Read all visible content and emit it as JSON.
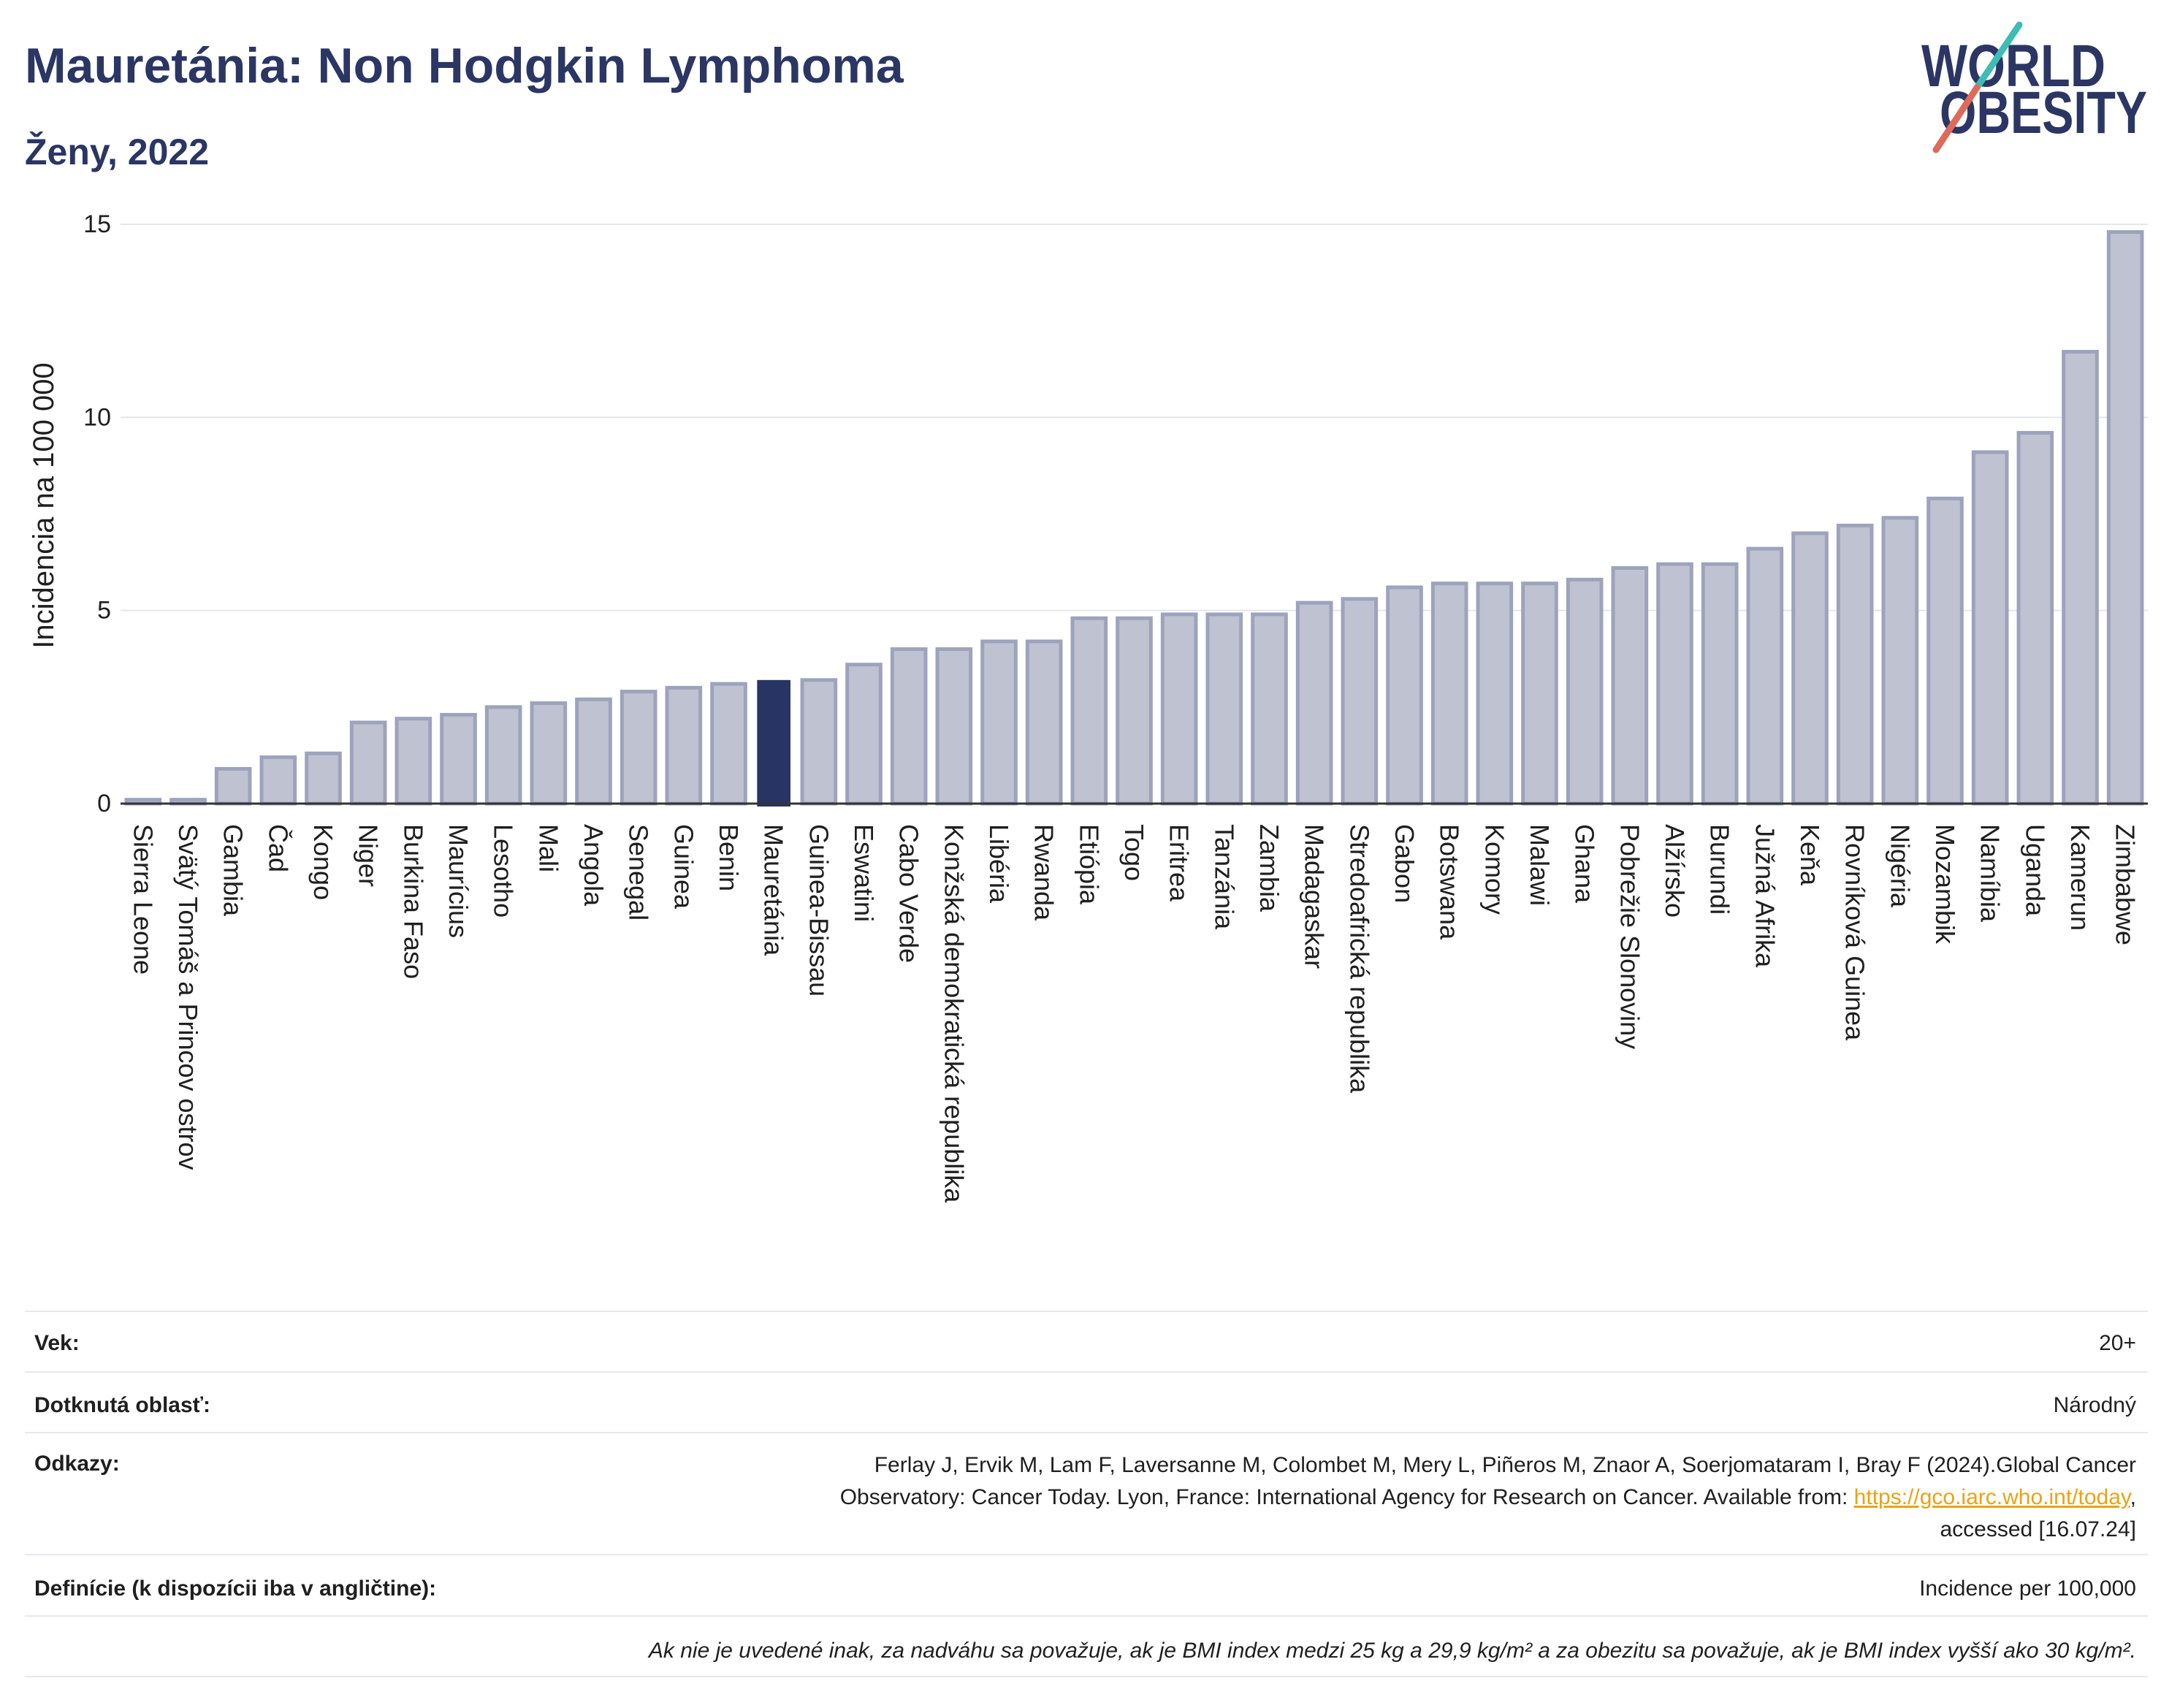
{
  "logo": {
    "line1": "WORLD",
    "line2": "OBESITY"
  },
  "chart_data": {
    "type": "bar",
    "title": "Mauretánia: Non Hodgkin Lymphoma",
    "subtitle": "Ženy, 2022",
    "xlabel": "",
    "ylabel": "Incidencia na 100 000",
    "ylim": [
      0,
      15
    ],
    "yticks": [
      0,
      5,
      10,
      15
    ],
    "grid": true,
    "legend": "none",
    "highlight": "Mauretánia",
    "colors": {
      "bar": "#bec2d1",
      "bar_border": "#9da3bc",
      "highlight": "#283463",
      "axis": "#333333",
      "grid": "#e4e6ec"
    },
    "categories": [
      "Sierra Leone",
      "Svätý Tomáš a Princov ostrov",
      "Gambia",
      "Čad",
      "Kongo",
      "Niger",
      "Burkina Faso",
      "Maurícius",
      "Lesotho",
      "Mali",
      "Angola",
      "Senegal",
      "Guinea",
      "Benin",
      "Mauretánia",
      "Guinea-Bissau",
      "Eswatini",
      "Cabo Verde",
      "Konžská demokratická republika",
      "Libéria",
      "Rwanda",
      "Etiópia",
      "Togo",
      "Eritrea",
      "Tanzánia",
      "Zambia",
      "Madagaskar",
      "Stredoafrická republika",
      "Gabon",
      "Botswana",
      "Komory",
      "Malawi",
      "Ghana",
      "Pobrežie Slonoviny",
      "Alžírsko",
      "Burundi",
      "Južná Afrika",
      "Keňa",
      "Rovníková Guinea",
      "Nigéria",
      "Mozambik",
      "Namíbia",
      "Uganda",
      "Kamerun",
      "Zimbabwe"
    ],
    "values": [
      0.1,
      0.1,
      0.9,
      1.2,
      1.3,
      2.1,
      2.2,
      2.3,
      2.5,
      2.6,
      2.7,
      2.9,
      3.0,
      3.1,
      3.2,
      3.2,
      3.6,
      4.0,
      4.0,
      4.2,
      4.2,
      4.8,
      4.8,
      4.9,
      4.9,
      4.9,
      5.2,
      5.3,
      5.6,
      5.7,
      5.7,
      5.7,
      5.8,
      6.1,
      6.2,
      6.2,
      6.6,
      7.0,
      7.2,
      7.4,
      7.9,
      9.1,
      9.6,
      11.7,
      14.8
    ]
  },
  "info": {
    "rows": [
      {
        "label": "Vek:",
        "value": "20+"
      },
      {
        "label": "Dotknutá oblasť:",
        "value": "Národný"
      },
      {
        "label": "Odkazy:",
        "value": {
          "line1": "Ferlay J, Ervik M, Lam F, Laversanne M, Colombet M, Mery L, Piñeros M, Znaor A, Soerjomataram I, Bray F (2024).Global Cancer",
          "line2": "Observatory: Cancer Today. Lyon, France: International Agency for Research on Cancer. Available from: ",
          "link": "https://gco.iarc.who.int/today",
          "line2_end": ",",
          "line3": "accessed [16.07.24]"
        }
      },
      {
        "label": "Definície (k dispozícii iba v angličtine):",
        "value": "Incidence per 100,000"
      }
    ],
    "footnote": "Ak nie je uvedené inak, za nadváhu sa považuje, ak je BMI index medzi 25 kg a 29,9 kg/m² a za obezitu sa považuje, ak je BMI index vyšší ako 30 kg/m²."
  }
}
